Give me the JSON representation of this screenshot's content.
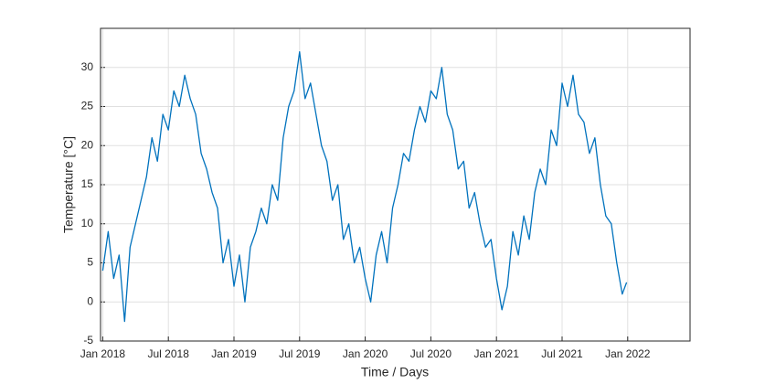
{
  "chart_data": {
    "type": "line",
    "xlabel": "Time / Days",
    "ylabel": "Temperature [°C]",
    "x": [
      0,
      0.5,
      1,
      1.5,
      2,
      2.5,
      3,
      3.5,
      4,
      4.5,
      5,
      5.5,
      6,
      6.5,
      7,
      7.5,
      8,
      8.5,
      9,
      9.5,
      10,
      10.5,
      11,
      11.5,
      12,
      12.5,
      13,
      13.5,
      14,
      14.5,
      15,
      15.5,
      16,
      16.5,
      17,
      17.5,
      18,
      18.5,
      19,
      19.5,
      20,
      20.5,
      21,
      21.5,
      22,
      22.5,
      23,
      23.5,
      24,
      24.5,
      25,
      25.5,
      26,
      26.5,
      27,
      27.5,
      28,
      28.5,
      29,
      29.5,
      30,
      30.5,
      31,
      31.5,
      32,
      32.5,
      33,
      33.5,
      34,
      34.5,
      35,
      35.5,
      36,
      36.5,
      37,
      37.5,
      38,
      38.5,
      39,
      39.5,
      40,
      40.5,
      41,
      41.5,
      42,
      42.5,
      43,
      43.5,
      44,
      44.5,
      45,
      45.5,
      46,
      46.5,
      47,
      47.5,
      47.9
    ],
    "series": [
      {
        "color": "#0072bd",
        "values": [
          4,
          9,
          3,
          6,
          -2.5,
          7,
          10,
          13,
          16,
          21,
          18,
          24,
          22,
          27,
          25,
          29,
          26,
          24,
          19,
          17,
          14,
          12,
          5,
          8,
          2,
          6,
          0,
          7,
          9,
          12,
          10,
          15,
          13,
          21,
          25,
          27,
          32,
          26,
          28,
          24,
          20,
          18,
          13,
          15,
          8,
          10,
          5,
          7,
          3,
          0,
          6,
          9,
          5,
          12,
          15,
          19,
          18,
          22,
          25,
          23,
          27,
          26,
          30,
          24,
          22,
          17,
          18,
          12,
          14,
          10,
          7,
          8,
          3,
          -1,
          2,
          9,
          6,
          11,
          8,
          14,
          17,
          15,
          22,
          20,
          28,
          25,
          29,
          24,
          23,
          19,
          21,
          15,
          11,
          10,
          5,
          1,
          2.5
        ]
      }
    ],
    "xlim": [
      -0.2,
      53.7
    ],
    "xticks": [
      {
        "value": 0,
        "label": "Jan 2018"
      },
      {
        "value": 6,
        "label": "Jul 2018"
      },
      {
        "value": 12,
        "label": "Jan 2019"
      },
      {
        "value": 18,
        "label": "Jul 2019"
      },
      {
        "value": 24,
        "label": "Jan 2020"
      },
      {
        "value": 30,
        "label": "Jul 2020"
      },
      {
        "value": 36,
        "label": "Jan 2021"
      },
      {
        "value": 42,
        "label": "Jul 2021"
      },
      {
        "value": 48,
        "label": "Jan 2022"
      }
    ],
    "ylim": [
      -5,
      35
    ],
    "yticks": [
      -5,
      0,
      5,
      10,
      15,
      20,
      25,
      30
    ],
    "grid": true
  }
}
